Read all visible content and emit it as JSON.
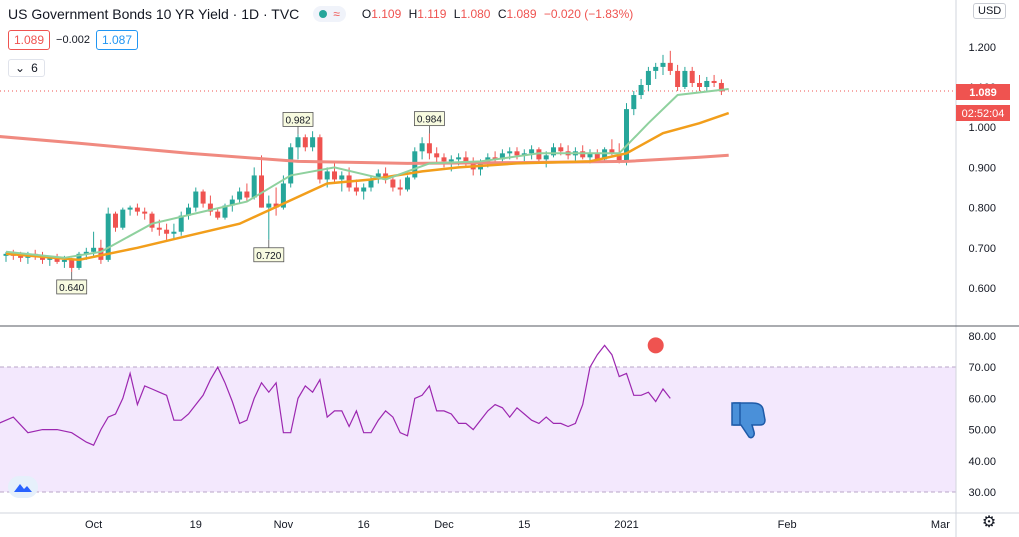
{
  "header": {
    "title": "US Government Bonds 10 YR Yield · 1D · TVC",
    "ohlc": {
      "open_label": "O",
      "open": "1.109",
      "high_label": "H",
      "high": "1.119",
      "low_label": "L",
      "low": "1.080",
      "close_label": "C",
      "close": "1.089",
      "change": "−0.020 (−1.83%)"
    },
    "sell_price": "1.089",
    "spread": "−0.002",
    "buy_price": "1.087",
    "indicator_count": "6",
    "currency": "USD"
  },
  "colors": {
    "up": "#26a69a",
    "down": "#ef5350",
    "ma_fast": "#8fd19e",
    "ma_mid": "#f29e1b",
    "ma_slow": "#f08a80",
    "rsi": "#9c27b0",
    "rsi_band": "#efe2fb",
    "price_tag": "#ef5350"
  },
  "chart_data": [
    {
      "type": "candlestick",
      "ylim": [
        0.54,
        1.23
      ],
      "yticks": [
        "0.600",
        "0.700",
        "0.800",
        "0.900",
        "1.000",
        "1.100",
        "1.200"
      ],
      "x_tick_labels": [
        "Oct",
        "19",
        "Nov",
        "16",
        "Dec",
        "15",
        "2021",
        "Feb",
        "Mar"
      ],
      "last_price": "1.089",
      "countdown": "02:52:04",
      "candles": [
        [
          0.68,
          0.69,
          0.665,
          0.685
        ],
        [
          0.685,
          0.695,
          0.67,
          0.68
        ],
        [
          0.68,
          0.69,
          0.665,
          0.675
        ],
        [
          0.675,
          0.69,
          0.66,
          0.685
        ],
        [
          0.685,
          0.695,
          0.67,
          0.68
        ],
        [
          0.68,
          0.69,
          0.66,
          0.67
        ],
        [
          0.67,
          0.68,
          0.655,
          0.675
        ],
        [
          0.675,
          0.685,
          0.66,
          0.665
        ],
        [
          0.665,
          0.68,
          0.65,
          0.67
        ],
        [
          0.67,
          0.675,
          0.64,
          0.65
        ],
        [
          0.65,
          0.69,
          0.645,
          0.685
        ],
        [
          0.685,
          0.7,
          0.67,
          0.69
        ],
        [
          0.69,
          0.74,
          0.68,
          0.7
        ],
        [
          0.7,
          0.72,
          0.66,
          0.67
        ],
        [
          0.67,
          0.8,
          0.665,
          0.785
        ],
        [
          0.785,
          0.79,
          0.74,
          0.75
        ],
        [
          0.75,
          0.8,
          0.745,
          0.795
        ],
        [
          0.795,
          0.805,
          0.78,
          0.8
        ],
        [
          0.8,
          0.81,
          0.78,
          0.79
        ],
        [
          0.79,
          0.8,
          0.77,
          0.785
        ],
        [
          0.785,
          0.79,
          0.74,
          0.75
        ],
        [
          0.75,
          0.77,
          0.73,
          0.745
        ],
        [
          0.745,
          0.76,
          0.72,
          0.735
        ],
        [
          0.735,
          0.76,
          0.72,
          0.74
        ],
        [
          0.74,
          0.79,
          0.73,
          0.78
        ],
        [
          0.78,
          0.81,
          0.77,
          0.8
        ],
        [
          0.8,
          0.85,
          0.79,
          0.84
        ],
        [
          0.84,
          0.845,
          0.8,
          0.81
        ],
        [
          0.81,
          0.83,
          0.78,
          0.79
        ],
        [
          0.79,
          0.8,
          0.77,
          0.775
        ],
        [
          0.775,
          0.81,
          0.77,
          0.805
        ],
        [
          0.805,
          0.83,
          0.79,
          0.82
        ],
        [
          0.82,
          0.85,
          0.81,
          0.84
        ],
        [
          0.84,
          0.86,
          0.815,
          0.825
        ],
        [
          0.825,
          0.9,
          0.82,
          0.88
        ],
        [
          0.88,
          0.93,
          0.8,
          0.8
        ],
        [
          0.8,
          0.83,
          0.72,
          0.81
        ],
        [
          0.81,
          0.85,
          0.78,
          0.8
        ],
        [
          0.8,
          0.88,
          0.795,
          0.86
        ],
        [
          0.86,
          0.96,
          0.85,
          0.95
        ],
        [
          0.95,
          0.982,
          0.92,
          0.975
        ],
        [
          0.975,
          0.982,
          0.94,
          0.95
        ],
        [
          0.95,
          0.99,
          0.94,
          0.975
        ],
        [
          0.975,
          0.982,
          0.86,
          0.87
        ],
        [
          0.87,
          0.9,
          0.85,
          0.89
        ],
        [
          0.89,
          0.91,
          0.86,
          0.87
        ],
        [
          0.87,
          0.89,
          0.84,
          0.88
        ],
        [
          0.88,
          0.9,
          0.84,
          0.85
        ],
        [
          0.85,
          0.87,
          0.83,
          0.84
        ],
        [
          0.84,
          0.86,
          0.82,
          0.85
        ],
        [
          0.85,
          0.88,
          0.84,
          0.87
        ],
        [
          0.87,
          0.895,
          0.86,
          0.885
        ],
        [
          0.885,
          0.9,
          0.86,
          0.87
        ],
        [
          0.87,
          0.88,
          0.84,
          0.85
        ],
        [
          0.85,
          0.87,
          0.83,
          0.845
        ],
        [
          0.845,
          0.88,
          0.84,
          0.875
        ],
        [
          0.875,
          0.95,
          0.87,
          0.94
        ],
        [
          0.94,
          0.975,
          0.92,
          0.96
        ],
        [
          0.96,
          0.984,
          0.92,
          0.935
        ],
        [
          0.935,
          0.95,
          0.91,
          0.925
        ],
        [
          0.925,
          0.935,
          0.9,
          0.915
        ],
        [
          0.915,
          0.93,
          0.89,
          0.92
        ],
        [
          0.92,
          0.935,
          0.905,
          0.925
        ],
        [
          0.925,
          0.94,
          0.9,
          0.91
        ],
        [
          0.91,
          0.925,
          0.88,
          0.895
        ],
        [
          0.895,
          0.92,
          0.88,
          0.915
        ],
        [
          0.915,
          0.935,
          0.9,
          0.925
        ],
        [
          0.925,
          0.94,
          0.905,
          0.92
        ],
        [
          0.92,
          0.945,
          0.91,
          0.935
        ],
        [
          0.935,
          0.95,
          0.92,
          0.94
        ],
        [
          0.94,
          0.95,
          0.92,
          0.93
        ],
        [
          0.93,
          0.945,
          0.915,
          0.935
        ],
        [
          0.935,
          0.955,
          0.92,
          0.945
        ],
        [
          0.945,
          0.95,
          0.91,
          0.92
        ],
        [
          0.92,
          0.94,
          0.9,
          0.93
        ],
        [
          0.93,
          0.96,
          0.925,
          0.95
        ],
        [
          0.95,
          0.96,
          0.93,
          0.94
        ],
        [
          0.94,
          0.955,
          0.92,
          0.93
        ],
        [
          0.93,
          0.95,
          0.915,
          0.94
        ],
        [
          0.94,
          0.955,
          0.92,
          0.925
        ],
        [
          0.925,
          0.945,
          0.91,
          0.935
        ],
        [
          0.935,
          0.945,
          0.915,
          0.92
        ],
        [
          0.92,
          0.95,
          0.915,
          0.945
        ],
        [
          0.945,
          0.97,
          0.93,
          0.935
        ],
        [
          0.935,
          0.96,
          0.91,
          0.915
        ],
        [
          0.915,
          1.06,
          0.905,
          1.045
        ],
        [
          1.045,
          1.09,
          1.03,
          1.08
        ],
        [
          1.08,
          1.12,
          1.07,
          1.105
        ],
        [
          1.105,
          1.15,
          1.09,
          1.14
        ],
        [
          1.14,
          1.16,
          1.12,
          1.15
        ],
        [
          1.15,
          1.18,
          1.13,
          1.16
        ],
        [
          1.16,
          1.19,
          1.13,
          1.14
        ],
        [
          1.14,
          1.155,
          1.09,
          1.1
        ],
        [
          1.1,
          1.15,
          1.095,
          1.14
        ],
        [
          1.14,
          1.15,
          1.1,
          1.11
        ],
        [
          1.11,
          1.13,
          1.09,
          1.1
        ],
        [
          1.1,
          1.125,
          1.09,
          1.115
        ],
        [
          1.115,
          1.13,
          1.1,
          1.11
        ],
        [
          1.11,
          1.119,
          1.08,
          1.089
        ]
      ],
      "ma_fast": [
        [
          0,
          0.69
        ],
        [
          8,
          0.675
        ],
        [
          13,
          0.69
        ],
        [
          20,
          0.76
        ],
        [
          27,
          0.79
        ],
        [
          33,
          0.815
        ],
        [
          39,
          0.88
        ],
        [
          45,
          0.9
        ],
        [
          52,
          0.87
        ],
        [
          58,
          0.91
        ],
        [
          65,
          0.915
        ],
        [
          73,
          0.935
        ],
        [
          84,
          0.935
        ],
        [
          88,
          1.01
        ],
        [
          92,
          1.08
        ],
        [
          99,
          1.095
        ]
      ],
      "ma_mid": [
        [
          0,
          0.685
        ],
        [
          10,
          0.67
        ],
        [
          18,
          0.7
        ],
        [
          25,
          0.73
        ],
        [
          32,
          0.76
        ],
        [
          38,
          0.81
        ],
        [
          44,
          0.86
        ],
        [
          50,
          0.87
        ],
        [
          57,
          0.89
        ],
        [
          62,
          0.9
        ],
        [
          70,
          0.91
        ],
        [
          80,
          0.915
        ],
        [
          85,
          0.935
        ],
        [
          90,
          0.985
        ],
        [
          95,
          1.01
        ],
        [
          99,
          1.035
        ]
      ],
      "ma_slow": [
        [
          -3,
          0.98
        ],
        [
          10,
          0.96
        ],
        [
          25,
          0.935
        ],
        [
          40,
          0.915
        ],
        [
          55,
          0.91
        ],
        [
          70,
          0.912
        ],
        [
          85,
          0.915
        ],
        [
          95,
          0.925
        ],
        [
          99,
          0.93
        ]
      ],
      "markers": [
        {
          "label": "0.640",
          "candle": 9,
          "value": 0.64,
          "position": "below"
        },
        {
          "label": "0.720",
          "candle": 36,
          "value": 0.72,
          "position": "below"
        },
        {
          "label": "0.982",
          "candle": 40,
          "value": 0.982,
          "position": "above"
        },
        {
          "label": "0.984",
          "candle": 58,
          "value": 0.984,
          "position": "above"
        }
      ]
    },
    {
      "type": "line",
      "name": "",
      "ylim": [
        25,
        85
      ],
      "yticks": [
        "30.00",
        "40.00",
        "50.00",
        "60.00",
        "70.00",
        "80.00"
      ],
      "band": [
        30,
        70
      ],
      "peak": {
        "candle": 89,
        "value": 77
      },
      "values": [
        [
          -3,
          54
        ],
        [
          -1,
          52
        ],
        [
          1,
          54
        ],
        [
          3,
          49
        ],
        [
          5,
          50
        ],
        [
          7,
          50
        ],
        [
          9,
          49
        ],
        [
          11,
          46
        ],
        [
          12,
          45
        ],
        [
          13,
          50
        ],
        [
          14,
          54
        ],
        [
          15,
          55
        ],
        [
          16,
          60
        ],
        [
          17,
          68
        ],
        [
          18,
          58
        ],
        [
          19,
          64
        ],
        [
          20,
          63
        ],
        [
          21,
          62
        ],
        [
          22,
          61
        ],
        [
          23,
          53
        ],
        [
          24,
          53
        ],
        [
          25,
          55
        ],
        [
          26,
          58
        ],
        [
          27,
          61
        ],
        [
          28,
          66
        ],
        [
          29,
          70
        ],
        [
          30,
          65
        ],
        [
          31,
          59
        ],
        [
          32,
          52
        ],
        [
          33,
          53
        ],
        [
          34,
          60
        ],
        [
          35,
          65
        ],
        [
          36,
          62
        ],
        [
          37,
          65
        ],
        [
          38,
          49
        ],
        [
          39,
          49
        ],
        [
          40,
          60
        ],
        [
          41,
          64
        ],
        [
          42,
          62
        ],
        [
          43,
          66
        ],
        [
          44,
          54
        ],
        [
          45,
          56
        ],
        [
          46,
          56
        ],
        [
          47,
          51
        ],
        [
          48,
          56
        ],
        [
          49,
          49
        ],
        [
          50,
          49
        ],
        [
          51,
          53
        ],
        [
          52,
          56
        ],
        [
          53,
          54
        ],
        [
          54,
          49
        ],
        [
          55,
          48
        ],
        [
          56,
          60
        ],
        [
          57,
          61
        ],
        [
          58,
          64
        ],
        [
          59,
          56
        ],
        [
          60,
          56
        ],
        [
          61,
          55
        ],
        [
          62,
          52
        ],
        [
          63,
          52
        ],
        [
          64,
          50
        ],
        [
          65,
          53
        ],
        [
          66,
          56
        ],
        [
          67,
          58
        ],
        [
          68,
          57
        ],
        [
          69,
          54
        ],
        [
          70,
          57
        ],
        [
          71,
          55
        ],
        [
          72,
          53
        ],
        [
          73,
          52
        ],
        [
          74,
          54
        ],
        [
          75,
          52
        ],
        [
          76,
          52
        ],
        [
          77,
          51
        ],
        [
          78,
          52
        ],
        [
          79,
          58
        ],
        [
          80,
          70
        ],
        [
          81,
          74
        ],
        [
          82,
          77
        ],
        [
          83,
          74
        ],
        [
          84,
          67
        ],
        [
          85,
          68
        ],
        [
          86,
          61
        ],
        [
          87,
          61
        ],
        [
          88,
          62
        ],
        [
          89,
          59
        ],
        [
          90,
          63
        ],
        [
          91,
          60
        ]
      ]
    }
  ]
}
